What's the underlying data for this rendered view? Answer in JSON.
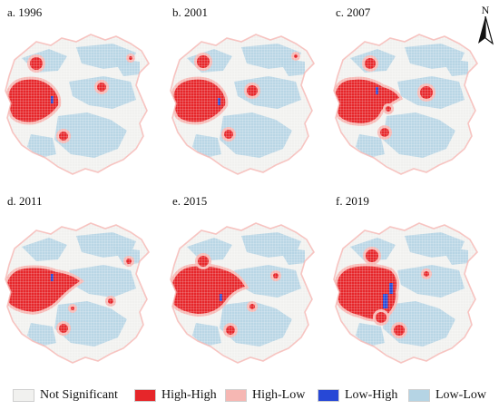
{
  "colors": {
    "not_significant": "#f1f1ef",
    "high_high": "#e6262a",
    "high_low": "#f6b7b3",
    "low_high": "#2748d6",
    "low_low": "#b5d4e4"
  },
  "panels": [
    {
      "label": "a. 1996"
    },
    {
      "label": "b. 2001"
    },
    {
      "label": "c. 2007"
    },
    {
      "label": "d. 2011"
    },
    {
      "label": "e. 2015"
    },
    {
      "label": "f. 2019"
    }
  ],
  "compass": {
    "letter": "N",
    "icon": "north-arrow-icon"
  },
  "legend": [
    {
      "label": "Not Significant",
      "color": "#f1f1ef"
    },
    {
      "label": "High-High",
      "color": "#e6262a"
    },
    {
      "label": "High-Low",
      "color": "#f6b7b3"
    },
    {
      "label": "Low-High",
      "color": "#2748d6"
    },
    {
      "label": "Low-Low",
      "color": "#b5d4e4"
    }
  ]
}
